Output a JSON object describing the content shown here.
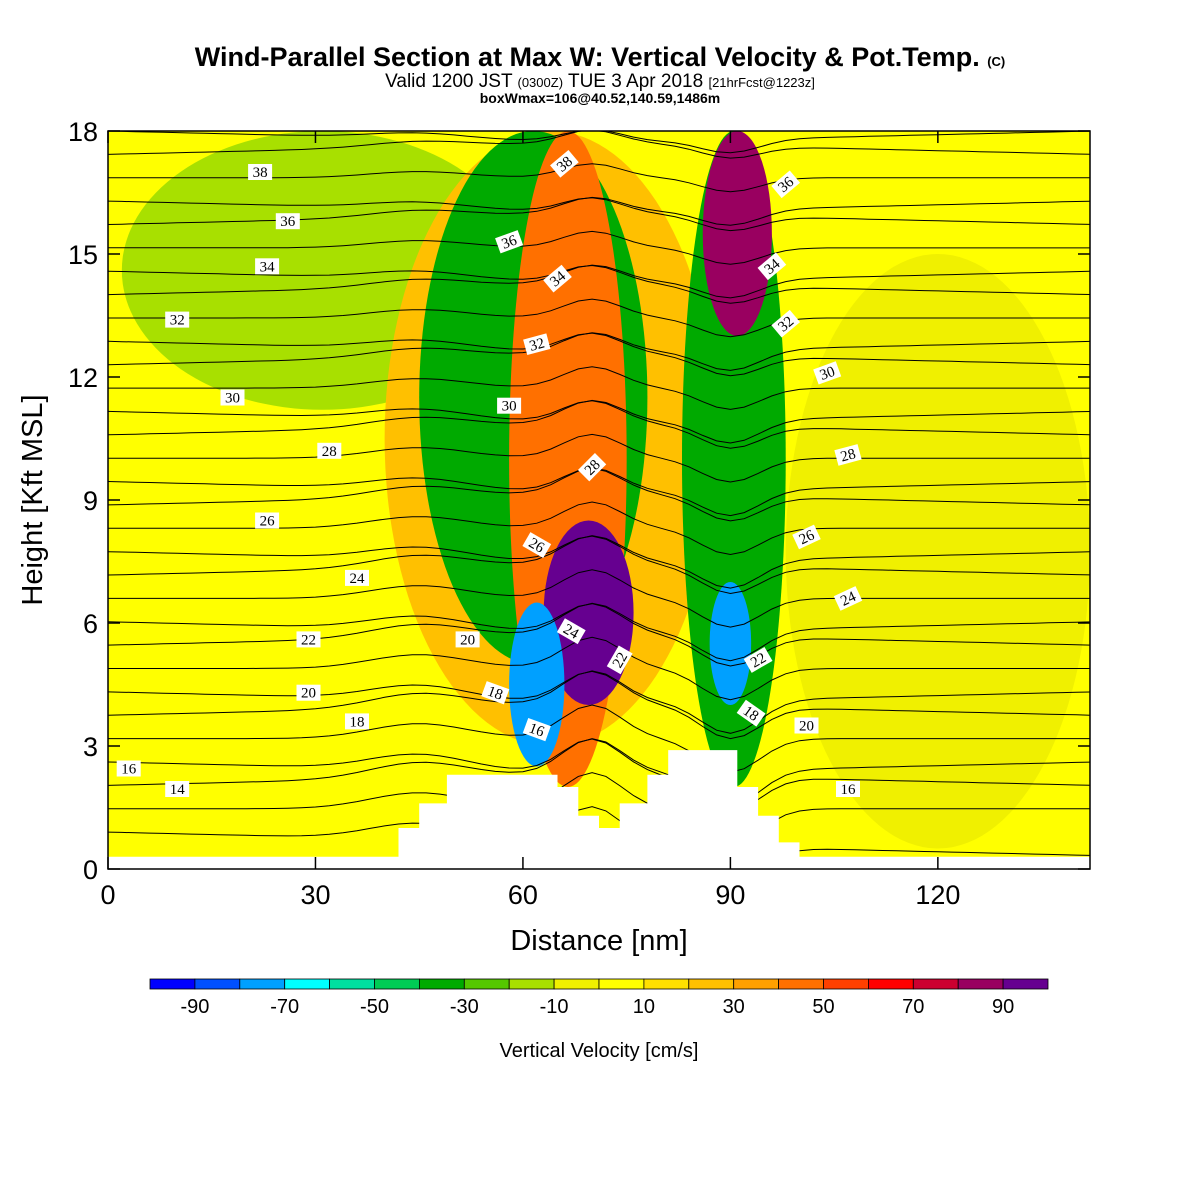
{
  "header": {
    "title": "Wind-Parallel Section at Max W: Vertical Velocity & Pot.Temp.",
    "title_mark": "(C)",
    "valid_a": "Valid 1200 JST",
    "valid_b": "(0300Z)",
    "valid_c": "TUE 3 Apr 2018",
    "valid_d": "[21hrFcst@1223z]",
    "boxinfo": "boxWmax=106@40.52,140.59,1486m"
  },
  "chart_data": {
    "type": "heatmap",
    "xlabel": "Distance [nm]",
    "ylabel": "Height [Kft MSL]",
    "xlim": [
      0,
      142
    ],
    "ylim": [
      0,
      18
    ],
    "x_ticks": [
      0,
      30,
      60,
      90,
      120
    ],
    "y_ticks": [
      0,
      3,
      6,
      9,
      12,
      15,
      18
    ],
    "colorbar": {
      "label": "Vertical Velocity [cm/s]",
      "tick_labels": [
        -90,
        -70,
        -50,
        -30,
        -10,
        10,
        30,
        50,
        70,
        90
      ],
      "levels": [
        -100,
        -90,
        -80,
        -70,
        -60,
        -50,
        -40,
        -30,
        -20,
        -10,
        0,
        10,
        20,
        30,
        40,
        50,
        60,
        70,
        80,
        90,
        100
      ],
      "colors": [
        "#0000ff",
        "#0050ff",
        "#00a0ff",
        "#00ffff",
        "#00e0a0",
        "#00cc55",
        "#00aa00",
        "#55c800",
        "#a8e000",
        "#f0f000",
        "#ffff00",
        "#ffe000",
        "#ffc000",
        "#ffa000",
        "#ff7000",
        "#ff4000",
        "#ff0000",
        "#cc0030",
        "#990060",
        "#660090"
      ]
    },
    "vertical_velocity_cms": {
      "background": 5,
      "features": [
        {
          "x0": 2,
          "y0": 11.2,
          "x1": 60,
          "y1": 18,
          "value": -15
        },
        {
          "x0": 40,
          "y0": 3,
          "x1": 88,
          "y1": 18,
          "value": 25
        },
        {
          "x0": 45,
          "y0": 5,
          "x1": 78,
          "y1": 18,
          "value": -35
        },
        {
          "x0": 58,
          "y0": 2,
          "x1": 75,
          "y1": 18,
          "value": 45
        },
        {
          "x0": 63,
          "y0": 4,
          "x1": 76,
          "y1": 8.5,
          "value": 90
        },
        {
          "x0": 58,
          "y0": 2.5,
          "x1": 66,
          "y1": 6.5,
          "value": -75
        },
        {
          "x0": 83,
          "y0": 2,
          "x1": 98,
          "y1": 18,
          "value": -40
        },
        {
          "x0": 87,
          "y0": 4,
          "x1": 93,
          "y1": 7,
          "value": -75
        },
        {
          "x0": 86,
          "y0": 13,
          "x1": 96,
          "y1": 18,
          "value": 85
        },
        {
          "x0": 118,
          "y0": 4,
          "x1": 136,
          "y1": 9,
          "value": -25
        },
        {
          "x0": 98,
          "y0": 0.5,
          "x1": 142,
          "y1": 15,
          "value": -10
        }
      ]
    },
    "topography_kft": [
      [
        0,
        0.3
      ],
      [
        42,
        0.3
      ],
      [
        42,
        1.0
      ],
      [
        45,
        1.0
      ],
      [
        45,
        1.6
      ],
      [
        49,
        1.6
      ],
      [
        49,
        2.3
      ],
      [
        65,
        2.3
      ],
      [
        65,
        2.0
      ],
      [
        68,
        2.0
      ],
      [
        68,
        1.3
      ],
      [
        71,
        1.3
      ],
      [
        71,
        1.0
      ],
      [
        74,
        1.0
      ],
      [
        74,
        1.6
      ],
      [
        78,
        1.6
      ],
      [
        78,
        2.3
      ],
      [
        81,
        2.3
      ],
      [
        81,
        2.9
      ],
      [
        91,
        2.9
      ],
      [
        91,
        2.0
      ],
      [
        94,
        2.0
      ],
      [
        94,
        1.3
      ],
      [
        97,
        1.3
      ],
      [
        97,
        0.65
      ],
      [
        100,
        0.65
      ],
      [
        100,
        0.3
      ],
      [
        142,
        0.3
      ]
    ],
    "theta_contour_labels": [
      "14",
      "16",
      "18",
      "20",
      "22",
      "24",
      "26",
      "28",
      "30",
      "32",
      "34",
      "36",
      "38"
    ],
    "theta_labels": [
      {
        "text": "38",
        "x": 22,
        "y": 17.0,
        "angle": 0
      },
      {
        "text": "36",
        "x": 26,
        "y": 15.8,
        "angle": 0
      },
      {
        "text": "34",
        "x": 23,
        "y": 14.7,
        "angle": 0
      },
      {
        "text": "32",
        "x": 10,
        "y": 13.4,
        "angle": 0
      },
      {
        "text": "30",
        "x": 18,
        "y": 11.5,
        "angle": 0
      },
      {
        "text": "28",
        "x": 32,
        "y": 10.2,
        "angle": 0
      },
      {
        "text": "26",
        "x": 23,
        "y": 8.5,
        "angle": 0
      },
      {
        "text": "24",
        "x": 36,
        "y": 7.1,
        "angle": 0
      },
      {
        "text": "22",
        "x": 29,
        "y": 5.6,
        "angle": 0
      },
      {
        "text": "20",
        "x": 29,
        "y": 4.3,
        "angle": 0
      },
      {
        "text": "18",
        "x": 36,
        "y": 3.6,
        "angle": 0
      },
      {
        "text": "16",
        "x": 3,
        "y": 2.45,
        "angle": 0
      },
      {
        "text": "14",
        "x": 10,
        "y": 1.95,
        "angle": 0
      },
      {
        "text": "38",
        "x": 66,
        "y": 17.2,
        "angle": -40
      },
      {
        "text": "36",
        "x": 58,
        "y": 15.3,
        "angle": -20
      },
      {
        "text": "34",
        "x": 65,
        "y": 14.4,
        "angle": -40
      },
      {
        "text": "32",
        "x": 62,
        "y": 12.8,
        "angle": -15
      },
      {
        "text": "30",
        "x": 58,
        "y": 11.3,
        "angle": 0
      },
      {
        "text": "28",
        "x": 70,
        "y": 9.8,
        "angle": -45
      },
      {
        "text": "26",
        "x": 62,
        "y": 7.9,
        "angle": 30
      },
      {
        "text": "24",
        "x": 67,
        "y": 5.8,
        "angle": 30
      },
      {
        "text": "22",
        "x": 74,
        "y": 5.1,
        "angle": -60
      },
      {
        "text": "20",
        "x": 52,
        "y": 5.6,
        "angle": 0
      },
      {
        "text": "18",
        "x": 56,
        "y": 4.3,
        "angle": 20
      },
      {
        "text": "16",
        "x": 62,
        "y": 3.4,
        "angle": 20
      },
      {
        "text": "36",
        "x": 98,
        "y": 16.7,
        "angle": -40
      },
      {
        "text": "34",
        "x": 96,
        "y": 14.7,
        "angle": -40
      },
      {
        "text": "32",
        "x": 98,
        "y": 13.3,
        "angle": -40
      },
      {
        "text": "30",
        "x": 104,
        "y": 12.1,
        "angle": -20
      },
      {
        "text": "28",
        "x": 107,
        "y": 10.1,
        "angle": -15
      },
      {
        "text": "26",
        "x": 101,
        "y": 8.1,
        "angle": -25
      },
      {
        "text": "24",
        "x": 107,
        "y": 6.6,
        "angle": -25
      },
      {
        "text": "22",
        "x": 94,
        "y": 5.1,
        "angle": -30
      },
      {
        "text": "18",
        "x": 93,
        "y": 3.8,
        "angle": 35
      },
      {
        "text": "20",
        "x": 101,
        "y": 3.5,
        "angle": 0
      },
      {
        "text": "16",
        "x": 107,
        "y": 1.95,
        "angle": 0
      }
    ]
  }
}
